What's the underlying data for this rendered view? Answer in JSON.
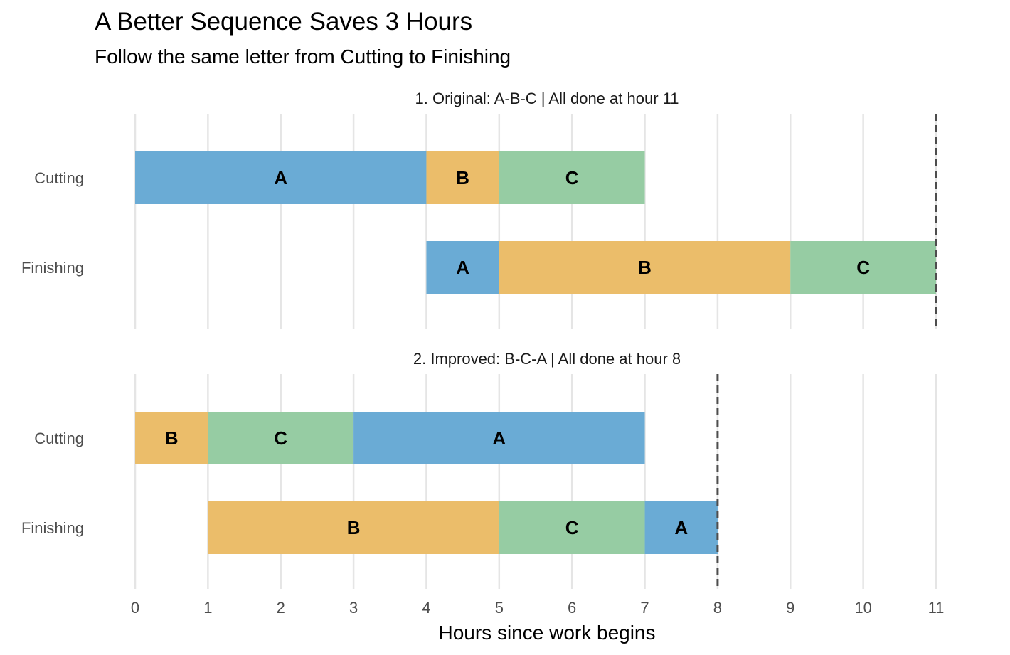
{
  "chart_data": {
    "type": "gantt",
    "title": "A Better Sequence Saves 3 Hours",
    "subtitle": "Follow the same letter from Cutting to Finishing",
    "xlabel": "Hours since work begins",
    "xlim": [
      0,
      11
    ],
    "xticks": [
      0,
      1,
      2,
      3,
      4,
      5,
      6,
      7,
      8,
      9,
      10,
      11
    ],
    "grid": "vertical",
    "colors": {
      "A": "#6aabd5",
      "B": "#ebbd6a",
      "C": "#96cca3",
      "finish_line": "#4d4d4d"
    },
    "panels": [
      {
        "title": "1. Original: A-B-C | All done at hour 11",
        "finish": 11,
        "rows": [
          {
            "label": "Cutting",
            "segments": [
              {
                "job": "A",
                "start": 0,
                "end": 4
              },
              {
                "job": "B",
                "start": 4,
                "end": 5
              },
              {
                "job": "C",
                "start": 5,
                "end": 7
              }
            ]
          },
          {
            "label": "Finishing",
            "segments": [
              {
                "job": "A",
                "start": 4,
                "end": 5
              },
              {
                "job": "B",
                "start": 5,
                "end": 9
              },
              {
                "job": "C",
                "start": 9,
                "end": 11
              }
            ]
          }
        ]
      },
      {
        "title": "2. Improved: B-C-A | All done at hour 8",
        "finish": 8,
        "rows": [
          {
            "label": "Cutting",
            "segments": [
              {
                "job": "B",
                "start": 0,
                "end": 1
              },
              {
                "job": "C",
                "start": 1,
                "end": 3
              },
              {
                "job": "A",
                "start": 3,
                "end": 7
              }
            ]
          },
          {
            "label": "Finishing",
            "segments": [
              {
                "job": "B",
                "start": 1,
                "end": 5
              },
              {
                "job": "C",
                "start": 5,
                "end": 7
              },
              {
                "job": "A",
                "start": 7,
                "end": 8
              }
            ]
          }
        ]
      }
    ]
  }
}
